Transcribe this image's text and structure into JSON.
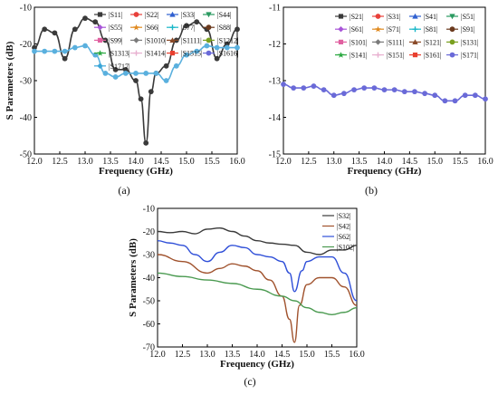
{
  "chart_data": [
    {
      "type": "line",
      "caption": "(a)",
      "xlabel": "Frequency (GHz)",
      "ylabel": "S Parameters (dB)",
      "xlim": [
        12.0,
        16.0
      ],
      "ylim": [
        -50,
        -10
      ],
      "xticks": [
        "12.0",
        "12.5",
        "13.0",
        "13.5",
        "14.0",
        "14.5",
        "15.0",
        "15.5",
        "16.0"
      ],
      "yticks": [
        "-10",
        "-20",
        "-30",
        "-40",
        "-50"
      ],
      "legend_placement": "top-right",
      "legend": [
        "|S11|",
        "|S22|",
        "|S33|",
        "|S44|",
        "|S55|",
        "|S66|",
        "|S77|",
        "|S88|",
        "|S99|",
        "|S1010|",
        "|S1111|",
        "|S1212|",
        "|S1313|",
        "|S1414|",
        "|S1515|",
        "|S1616|",
        "|S1717|"
      ],
      "colors": [
        "#3a3a3a",
        "#e8403a",
        "#3060d0",
        "#2a9a60",
        "#a855d8",
        "#e08a20",
        "#19b7c8",
        "#6b3a1e",
        "#e060a0",
        "#7a7a7a",
        "#8a4a28",
        "#7aa020",
        "#2aa840",
        "#e8b0d0",
        "#e84030",
        "#6a6ad8",
        "#3aa6d8"
      ],
      "series": [
        {
          "color": "#3a3a3a",
          "x": [
            12.0,
            12.2,
            12.4,
            12.6,
            12.8,
            13.0,
            13.2,
            13.4,
            13.6,
            13.8,
            14.0,
            14.1,
            14.2,
            14.3,
            14.4,
            14.6,
            14.8,
            15.0,
            15.2,
            15.4,
            15.6,
            15.8,
            16.0
          ],
          "y": [
            -21,
            -16,
            -17,
            -24,
            -16,
            -13,
            -14,
            -19,
            -27,
            -27,
            -30,
            -35,
            -47,
            -33,
            -28,
            -26,
            -19,
            -15,
            -14,
            -16,
            -24,
            -20,
            -16
          ]
        },
        {
          "color": "#5ab0de",
          "x": [
            12.0,
            12.2,
            12.4,
            12.6,
            12.8,
            13.0,
            13.2,
            13.4,
            13.6,
            13.8,
            14.0,
            14.2,
            14.4,
            14.6,
            14.8,
            15.0,
            15.2,
            15.4,
            15.6,
            15.8,
            16.0
          ],
          "y": [
            -22,
            -22,
            -22,
            -22,
            -21,
            -20.5,
            -23,
            -28,
            -29,
            -28,
            -28,
            -28,
            -28,
            -30,
            -26,
            -23,
            -22,
            -20.5,
            -21,
            -21,
            -21
          ]
        }
      ]
    },
    {
      "type": "line",
      "caption": "(b)",
      "xlabel": "Frequency (GHz)",
      "ylabel": "",
      "xlim": [
        12.0,
        16.0
      ],
      "ylim": [
        -15,
        -11
      ],
      "xticks": [
        "12.0",
        "12.5",
        "13.0",
        "13.5",
        "14.0",
        "14.5",
        "15.0",
        "15.5",
        "16.0"
      ],
      "yticks": [
        "-11",
        "-12",
        "-13",
        "-14",
        "-15"
      ],
      "legend_placement": "top-right",
      "legend": [
        "|S21|",
        "|S31|",
        "|S41|",
        "|S51|",
        "|S61|",
        "|S71|",
        "|S81|",
        "|S91|",
        "|S101|",
        "|S111|",
        "|S121|",
        "|S131|",
        "|S141|",
        "|S151|",
        "|S161|",
        "|S171|"
      ],
      "colors": [
        "#3a3a3a",
        "#e8403a",
        "#3060d0",
        "#2a9a60",
        "#a855d8",
        "#e08a20",
        "#19b7c8",
        "#6b3a1e",
        "#e060a0",
        "#7a7a7a",
        "#8a4a28",
        "#7aa020",
        "#2aa840",
        "#e8b0d0",
        "#e84030",
        "#6a6ad8"
      ],
      "series": [
        {
          "color": "#6a6ad8",
          "x": [
            12.0,
            12.2,
            12.4,
            12.6,
            12.8,
            13.0,
            13.2,
            13.4,
            13.6,
            13.8,
            14.0,
            14.2,
            14.4,
            14.6,
            14.8,
            15.0,
            15.2,
            15.4,
            15.6,
            15.8,
            16.0
          ],
          "y": [
            -13.1,
            -13.2,
            -13.2,
            -13.15,
            -13.25,
            -13.4,
            -13.35,
            -13.25,
            -13.2,
            -13.2,
            -13.25,
            -13.25,
            -13.3,
            -13.3,
            -13.35,
            -13.4,
            -13.55,
            -13.55,
            -13.4,
            -13.4,
            -13.5
          ]
        }
      ]
    },
    {
      "type": "line",
      "caption": "(c)",
      "xlabel": "Frequency (GHz)",
      "ylabel": "S Parameters (dB)",
      "xlim": [
        12.0,
        16.0
      ],
      "ylim": [
        -70,
        -10
      ],
      "xticks": [
        "12.0",
        "12.5",
        "13.0",
        "13.5",
        "14.0",
        "14.5",
        "15.0",
        "15.5",
        "16.0"
      ],
      "yticks": [
        "-10",
        "-20",
        "-30",
        "-40",
        "-50",
        "-60",
        "-70"
      ],
      "legend_placement": "top-right",
      "legend": [
        "|S32|",
        "|S42|",
        "|S62|",
        "|S102|"
      ],
      "colors": [
        "#3a3a3a",
        "#a0522d",
        "#2f4fd8",
        "#4a9a50"
      ],
      "series": [
        {
          "name": "|S32|",
          "color": "#3a3a3a",
          "x": [
            12.0,
            12.25,
            12.5,
            12.75,
            13.0,
            13.25,
            13.5,
            13.75,
            14.0,
            14.25,
            14.5,
            14.75,
            15.0,
            15.25,
            15.5,
            15.75,
            16.0
          ],
          "y": [
            -20,
            -20.5,
            -20,
            -21,
            -19,
            -18.5,
            -20,
            -22,
            -24,
            -25,
            -25.5,
            -26,
            -29,
            -30,
            -28,
            -28,
            -26
          ]
        },
        {
          "name": "|S42|",
          "color": "#a0522d",
          "x": [
            12.0,
            12.5,
            13.0,
            13.25,
            13.5,
            13.75,
            14.0,
            14.25,
            14.5,
            14.65,
            14.75,
            14.85,
            15.0,
            15.25,
            15.5,
            15.75,
            16.0
          ],
          "y": [
            -30,
            -33,
            -38,
            -36,
            -34,
            -35,
            -37,
            -41,
            -48,
            -58,
            -68,
            -52,
            -43,
            -40,
            -40,
            -44,
            -52
          ]
        },
        {
          "name": "|S62|",
          "color": "#2f4fd8",
          "x": [
            12.0,
            12.25,
            12.5,
            12.75,
            13.0,
            13.25,
            13.5,
            13.75,
            14.0,
            14.25,
            14.5,
            14.65,
            14.75,
            14.9,
            15.0,
            15.25,
            15.5,
            15.75,
            16.0
          ],
          "y": [
            -24,
            -25,
            -26,
            -30,
            -33,
            -29,
            -26,
            -27,
            -30,
            -31,
            -33,
            -38,
            -46,
            -37,
            -33,
            -31,
            -31,
            -38,
            -50
          ]
        },
        {
          "name": "|S102|",
          "color": "#4a9a50",
          "x": [
            12.0,
            12.5,
            13.0,
            13.5,
            14.0,
            14.5,
            14.75,
            15.0,
            15.25,
            15.5,
            15.75,
            16.0
          ],
          "y": [
            -38,
            -39.5,
            -41,
            -42.5,
            -45,
            -48,
            -50,
            -53,
            -55,
            -56,
            -55,
            -53
          ]
        }
      ]
    }
  ]
}
